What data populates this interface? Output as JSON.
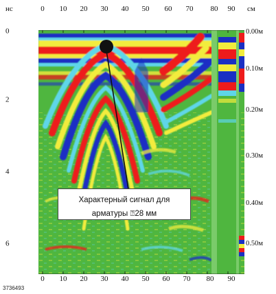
{
  "axes": {
    "time_unit": "нс",
    "distance_unit": "см",
    "top_ticks": [
      "0",
      "10",
      "20",
      "30",
      "40",
      "50",
      "60",
      "70",
      "80",
      "90"
    ],
    "bottom_ticks": [
      "0",
      "10",
      "20",
      "30",
      "40",
      "50",
      "60",
      "70",
      "80",
      "90"
    ],
    "left_ticks": [
      "0",
      "2",
      "4",
      "6"
    ],
    "right_ticks": [
      "0.00м",
      "0.10м",
      "0.20м",
      "0.30м",
      "0.40м",
      "0.50м"
    ]
  },
  "annotation": {
    "text_line1": "Характерный сигнал для",
    "text_line2": "арматуры ⍰28 мм"
  },
  "figure_id": "3736493",
  "colors": {
    "background": "#4fb63f",
    "red": "#ee1b1b",
    "blue": "#1a2fc4",
    "yellow": "#f2ec3c",
    "cyan": "#5ed6e8",
    "marker": "#111111"
  }
}
